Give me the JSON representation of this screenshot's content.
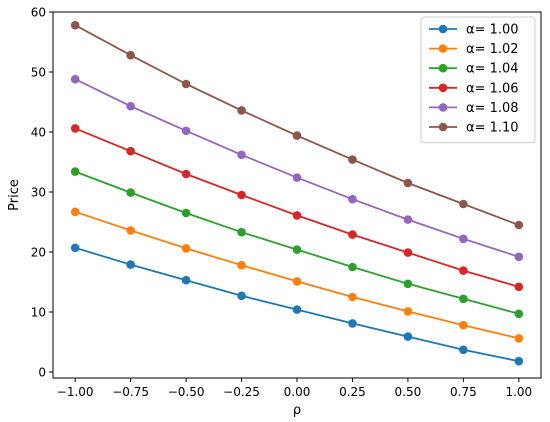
{
  "chart_data": {
    "type": "line",
    "title": "",
    "xlabel": "ρ",
    "ylabel": "Price",
    "xlim": [
      -1.1,
      1.1
    ],
    "ylim": [
      -1,
      60
    ],
    "xticks": [
      -1.0,
      -0.75,
      -0.5,
      -0.25,
      0.0,
      0.25,
      0.5,
      0.75,
      1.0
    ],
    "xtick_labels": [
      "−1.00",
      "−0.75",
      "−0.50",
      "−0.25",
      "0.00",
      "0.25",
      "0.50",
      "0.75",
      "1.00"
    ],
    "yticks": [
      0,
      10,
      20,
      30,
      40,
      50,
      60
    ],
    "ytick_labels": [
      "0",
      "10",
      "20",
      "30",
      "40",
      "50",
      "60"
    ],
    "grid": false,
    "legend_position": "top-right",
    "markers": "circle",
    "x": [
      -1.0,
      -0.75,
      -0.5,
      -0.25,
      0.0,
      0.25,
      0.5,
      0.75,
      1.0
    ],
    "series": [
      {
        "name": "α= 1.00",
        "color": "#1f77b4",
        "values": [
          20.7,
          17.9,
          15.3,
          12.7,
          10.4,
          8.1,
          5.9,
          3.7,
          1.8
        ]
      },
      {
        "name": "α= 1.02",
        "color": "#ff7f0e",
        "values": [
          26.7,
          23.6,
          20.6,
          17.8,
          15.1,
          12.5,
          10.1,
          7.8,
          5.6
        ]
      },
      {
        "name": "α= 1.04",
        "color": "#2ca02c",
        "values": [
          33.4,
          29.9,
          26.5,
          23.3,
          20.4,
          17.5,
          14.7,
          12.2,
          9.7
        ]
      },
      {
        "name": "α= 1.06",
        "color": "#d62728",
        "values": [
          40.6,
          36.8,
          33.0,
          29.5,
          26.1,
          22.9,
          19.9,
          16.9,
          14.2
        ]
      },
      {
        "name": "α= 1.08",
        "color": "#9467bd",
        "values": [
          48.8,
          44.3,
          40.2,
          36.2,
          32.4,
          28.8,
          25.4,
          22.2,
          19.2
        ]
      },
      {
        "name": "α= 1.10",
        "color": "#8c564b",
        "values": [
          57.8,
          52.8,
          48.0,
          43.6,
          39.4,
          35.4,
          31.5,
          28.0,
          24.5
        ]
      }
    ]
  }
}
